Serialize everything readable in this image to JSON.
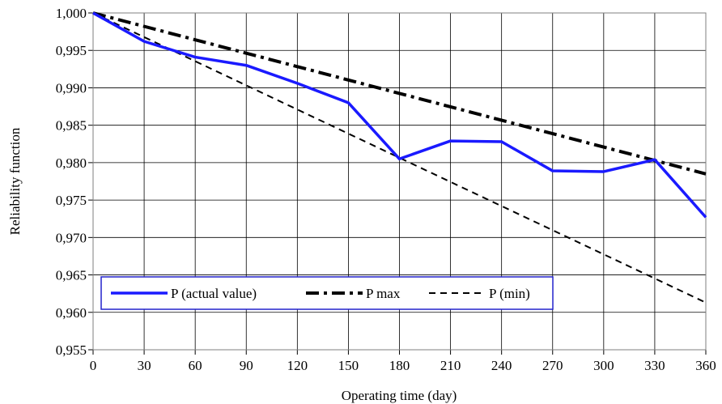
{
  "chart_data": {
    "type": "line",
    "xlabel": "Operating time (day)",
    "ylabel": "Reliability function",
    "xlim": [
      0,
      360
    ],
    "ylim": [
      0.955,
      1.0
    ],
    "x_ticks": [
      0,
      30,
      60,
      90,
      120,
      150,
      180,
      210,
      240,
      270,
      300,
      330,
      360
    ],
    "x_tick_labels": [
      "0",
      "30",
      "60",
      "90",
      "120",
      "150",
      "180",
      "210",
      "240",
      "270",
      "300",
      "330",
      "360"
    ],
    "y_ticks": [
      0.955,
      0.96,
      0.965,
      0.97,
      0.975,
      0.98,
      0.985,
      0.99,
      0.995,
      1.0
    ],
    "y_tick_labels": [
      "0,955",
      "0,960",
      "0,965",
      "0,970",
      "0,975",
      "0,980",
      "0,985",
      "0,990",
      "0,995",
      "1,000"
    ],
    "grid": true,
    "legend_position": "bottom-left",
    "series": [
      {
        "name": "P (actual value)",
        "color": "#1a1aff",
        "style": "solid",
        "x": [
          0,
          30,
          60,
          90,
          120,
          150,
          180,
          210,
          240,
          270,
          300,
          330,
          360
        ],
        "y": [
          1.0,
          0.9962,
          0.9941,
          0.993,
          0.9906,
          0.988,
          0.9805,
          0.9829,
          0.9828,
          0.9789,
          0.9788,
          0.9804,
          0.9727
        ]
      },
      {
        "name": "P max",
        "color": "#000000",
        "style": "dashdot",
        "x": [
          0,
          360
        ],
        "y": [
          1.0,
          0.9785
        ]
      },
      {
        "name": "P (min)",
        "color": "#000000",
        "style": "dashed",
        "x": [
          0,
          360
        ],
        "y": [
          1.0,
          0.9613
        ]
      }
    ]
  }
}
